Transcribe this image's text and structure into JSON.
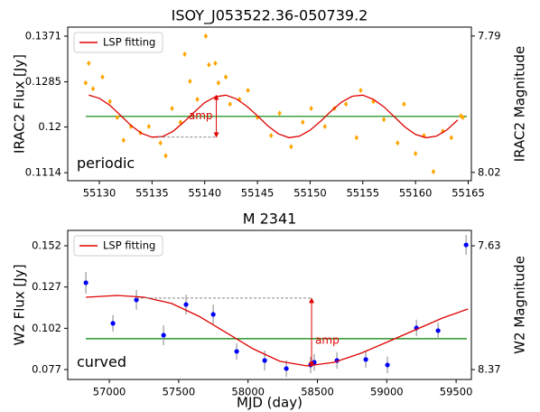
{
  "chart_data": [
    {
      "type": "scatter",
      "title": "ISOY_J053522.36-050739.2",
      "ylabel": "IRAC2 Flux [Jy]",
      "y2label": "IRAC2 Magnitude",
      "xlim": [
        55127,
        55165.3
      ],
      "xticks": [
        55130,
        55135,
        55140,
        55145,
        55150,
        55155,
        55160,
        55165
      ],
      "ylim": [
        0.1099,
        0.1388
      ],
      "yticks": [
        0.1114,
        0.12,
        0.1285,
        0.1371
      ],
      "y2lim": [
        8.034,
        7.775
      ],
      "y2ticks": [
        7.79,
        8.02
      ],
      "legend": "upper left",
      "series": [
        {
          "color": "#ffa500",
          "marker": "diamond",
          "x": [
            55128.7,
            55129.0,
            55129.4,
            55130.3,
            55131.0,
            55131.7,
            55132.3,
            55133.0,
            55133.9,
            55134.7,
            55135.8,
            55136.3,
            55136.9,
            55137.7,
            55138.1,
            55138.6,
            55139.3,
            55140.1,
            55140.4,
            55141.0,
            55141.3,
            55142.0,
            55142.4,
            55143.3,
            55144.1,
            55145.0,
            55146.3,
            55147.1,
            55148.2,
            55149.3,
            55150.1,
            55151.4,
            55152.3,
            55153.4,
            55154.4,
            55154.8,
            55156.0,
            55157.0,
            55158.3,
            55158.9,
            55160.0,
            55160.8,
            55161.7,
            55162.6,
            55163.4,
            55164.3,
            55164.5
          ],
          "values": [
            0.1283,
            0.132,
            0.1272,
            0.1294,
            0.1248,
            0.1218,
            0.1175,
            0.1201,
            0.1189,
            0.1201,
            0.117,
            0.1146,
            0.1235,
            0.1209,
            0.1337,
            0.1286,
            0.1252,
            0.1371,
            0.1317,
            0.132,
            0.1283,
            0.1294,
            0.1243,
            0.1252,
            0.1269,
            0.1218,
            0.1184,
            0.1226,
            0.1163,
            0.1209,
            0.1235,
            0.1201,
            0.1235,
            0.1243,
            0.118,
            0.1269,
            0.1248,
            0.1214,
            0.117,
            0.1243,
            0.115,
            0.1184,
            0.1116,
            0.1192,
            0.118,
            0.1221,
            0.1218
          ]
        },
        {
          "name": "LSP fitting",
          "color": "#e00000",
          "mode": "line",
          "x": [
            55129,
            55130,
            55131,
            55132,
            55133,
            55134,
            55135,
            55136,
            55137,
            55138,
            55139,
            55140,
            55141,
            55142,
            55143,
            55144,
            55145,
            55146,
            55147,
            55148,
            55149,
            55150,
            55151,
            55152,
            55153,
            55154,
            55155,
            55156,
            55157,
            55158,
            55159,
            55160,
            55161,
            55162,
            55163,
            55164
          ],
          "values": [
            0.126,
            0.1254,
            0.1241,
            0.1222,
            0.1203,
            0.1188,
            0.1181,
            0.1182,
            0.1192,
            0.1209,
            0.1228,
            0.1246,
            0.1257,
            0.126,
            0.1253,
            0.1239,
            0.1221,
            0.1202,
            0.1187,
            0.118,
            0.1183,
            0.1194,
            0.1211,
            0.123,
            0.1247,
            0.1258,
            0.126,
            0.1252,
            0.1238,
            0.1219,
            0.12,
            0.1186,
            0.118,
            0.1183,
            0.1195,
            0.1213
          ]
        }
      ],
      "hline": {
        "value": 0.122,
        "color": "#008000"
      },
      "amp": {
        "text": "amp",
        "x": 55141.1,
        "y_from": 0.1181,
        "y_to": 0.126,
        "dash_from_x": 55135.6
      },
      "label": "periodic"
    },
    {
      "type": "scatter",
      "title": "M 2341",
      "xlabel": "MJD (day)",
      "ylabel": "W2 Flux [Jy]",
      "y2label": "W2 Magnitude",
      "xlim": [
        56700,
        59610
      ],
      "xticks": [
        57000,
        57500,
        58000,
        58500,
        59000,
        59500
      ],
      "ylim": [
        0.071,
        0.1613
      ],
      "yticks": [
        0.077,
        0.102,
        0.127,
        0.152
      ],
      "y2lim": [
        8.429,
        7.538
      ],
      "y2ticks": [
        7.63,
        8.37
      ],
      "legend": "upper left",
      "series": [
        {
          "color": "#0000ff",
          "marker": "circle",
          "error_color": "#999999",
          "x": [
            56831,
            57026,
            57195,
            57391,
            57553,
            57749,
            57918,
            58120,
            58276,
            58451,
            58477,
            58641,
            58849,
            59005,
            59214,
            59370,
            59572
          ],
          "values": [
            0.1296,
            0.105,
            0.1192,
            0.0978,
            0.1164,
            0.1104,
            0.088,
            0.0825,
            0.0776,
            0.0798,
            0.0814,
            0.0825,
            0.0831,
            0.0798,
            0.1022,
            0.1006,
            0.1525
          ],
          "errors": [
            0.0066,
            0.005,
            0.006,
            0.006,
            0.006,
            0.006,
            0.005,
            0.006,
            0.005,
            0.005,
            0.005,
            0.005,
            0.005,
            0.005,
            0.005,
            0.005,
            0.006
          ]
        },
        {
          "name": "LSP fitting",
          "color": "#e00000",
          "mode": "line",
          "x": [
            56831,
            57059,
            57254,
            57449,
            57645,
            57840,
            58035,
            58230,
            58426,
            58621,
            58816,
            59012,
            59207,
            59402,
            59585
          ],
          "values": [
            0.1208,
            0.1219,
            0.1208,
            0.117,
            0.1093,
            0.0995,
            0.0896,
            0.082,
            0.0792,
            0.0814,
            0.0869,
            0.094,
            0.1011,
            0.1082,
            0.1137
          ]
        }
      ],
      "hline": {
        "value": 0.0957,
        "color": "#008000"
      },
      "amp": {
        "text": "amp",
        "x": 58458,
        "y_from": 0.0787,
        "y_to": 0.1203,
        "dash_from_x": 57195
      },
      "label": "curved"
    }
  ]
}
